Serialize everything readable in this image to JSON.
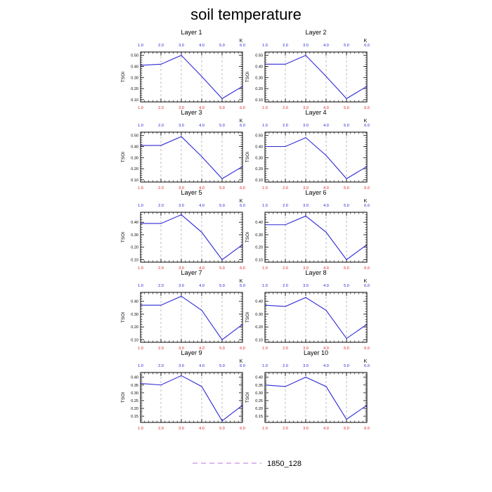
{
  "title": "soil temperature",
  "legend": {
    "label": "1850_128",
    "color": "#d8a0e8",
    "style": "dashed"
  },
  "colors": {
    "line": "#2e2ad6",
    "top_ticks": "#2222cc",
    "bottom_ticks": "#dd2222",
    "grid": "#a0a0a0"
  },
  "chart_data": [
    {
      "type": "line",
      "title": "Layer 1",
      "ylabel": "TSOI",
      "top_unit": "K",
      "x": [
        1,
        2,
        3,
        4,
        5,
        6
      ],
      "xlim": [
        1,
        6
      ],
      "xticks": [
        "1.0",
        "2.0",
        "3.0",
        "4.0",
        "5.0",
        "6.0"
      ],
      "ylim": [
        0.08,
        0.53
      ],
      "yticks": [
        0.1,
        0.2,
        0.3,
        0.4,
        0.5
      ],
      "yticklabels": [
        "0.10",
        "0.20",
        "0.30",
        "0.40",
        "0.50"
      ],
      "series": [
        {
          "name": "1850_128",
          "values": [
            0.41,
            0.42,
            0.5,
            0.31,
            0.11,
            0.22
          ]
        }
      ]
    },
    {
      "type": "line",
      "title": "Layer 2",
      "ylabel": "TSOI",
      "top_unit": "K",
      "x": [
        1,
        2,
        3,
        4,
        5,
        6
      ],
      "xlim": [
        1,
        6
      ],
      "xticks": [
        "1.0",
        "2.0",
        "3.0",
        "4.0",
        "5.0",
        "6.0"
      ],
      "ylim": [
        0.08,
        0.53
      ],
      "yticks": [
        0.1,
        0.2,
        0.3,
        0.4,
        0.5
      ],
      "yticklabels": [
        "0.10",
        "0.20",
        "0.30",
        "0.40",
        "0.50"
      ],
      "series": [
        {
          "name": "1850_128",
          "values": [
            0.42,
            0.42,
            0.5,
            0.31,
            0.11,
            0.22
          ]
        }
      ]
    },
    {
      "type": "line",
      "title": "Layer 3",
      "ylabel": "TSOI",
      "top_unit": "K",
      "x": [
        1,
        2,
        3,
        4,
        5,
        6
      ],
      "xlim": [
        1,
        6
      ],
      "xticks": [
        "1.0",
        "2.0",
        "3.0",
        "4.0",
        "5.0",
        "6.0"
      ],
      "ylim": [
        0.08,
        0.53
      ],
      "yticks": [
        0.1,
        0.2,
        0.3,
        0.4,
        0.5
      ],
      "yticklabels": [
        "0.10",
        "0.20",
        "0.30",
        "0.40",
        "0.50"
      ],
      "series": [
        {
          "name": "1850_128",
          "values": [
            0.41,
            0.41,
            0.49,
            0.31,
            0.11,
            0.22
          ]
        }
      ]
    },
    {
      "type": "line",
      "title": "Layer 4",
      "ylabel": "TSOI",
      "top_unit": "K",
      "x": [
        1,
        2,
        3,
        4,
        5,
        6
      ],
      "xlim": [
        1,
        6
      ],
      "xticks": [
        "1.0",
        "2.0",
        "3.0",
        "4.0",
        "5.0",
        "6.0"
      ],
      "ylim": [
        0.08,
        0.53
      ],
      "yticks": [
        0.1,
        0.2,
        0.3,
        0.4,
        0.5
      ],
      "yticklabels": [
        "0.10",
        "0.20",
        "0.30",
        "0.40",
        "0.50"
      ],
      "series": [
        {
          "name": "1850_128",
          "values": [
            0.4,
            0.4,
            0.48,
            0.32,
            0.11,
            0.22
          ]
        }
      ]
    },
    {
      "type": "line",
      "title": "Layer 5",
      "ylabel": "TSOI",
      "top_unit": "K",
      "x": [
        1,
        2,
        3,
        4,
        5,
        6
      ],
      "xlim": [
        1,
        6
      ],
      "xticks": [
        "1.0",
        "2.0",
        "3.0",
        "4.0",
        "5.0",
        "6.0"
      ],
      "ylim": [
        0.08,
        0.48
      ],
      "yticks": [
        0.1,
        0.2,
        0.3,
        0.4
      ],
      "yticklabels": [
        "0.10",
        "0.20",
        "0.30",
        "0.40"
      ],
      "series": [
        {
          "name": "1850_128",
          "values": [
            0.39,
            0.39,
            0.46,
            0.32,
            0.1,
            0.22
          ]
        }
      ]
    },
    {
      "type": "line",
      "title": "Layer 6",
      "ylabel": "TSOI",
      "top_unit": "K",
      "x": [
        1,
        2,
        3,
        4,
        5,
        6
      ],
      "xlim": [
        1,
        6
      ],
      "xticks": [
        "1.0",
        "2.0",
        "3.0",
        "4.0",
        "5.0",
        "6.0"
      ],
      "ylim": [
        0.08,
        0.48
      ],
      "yticks": [
        0.1,
        0.2,
        0.3,
        0.4
      ],
      "yticklabels": [
        "0.10",
        "0.20",
        "0.30",
        "0.40"
      ],
      "series": [
        {
          "name": "1850_128",
          "values": [
            0.38,
            0.38,
            0.45,
            0.32,
            0.1,
            0.22
          ]
        }
      ]
    },
    {
      "type": "line",
      "title": "Layer 7",
      "ylabel": "TSOI",
      "top_unit": "K",
      "x": [
        1,
        2,
        3,
        4,
        5,
        6
      ],
      "xlim": [
        1,
        6
      ],
      "xticks": [
        "1.0",
        "2.0",
        "3.0",
        "4.0",
        "5.0",
        "6.0"
      ],
      "ylim": [
        0.08,
        0.47
      ],
      "yticks": [
        0.1,
        0.2,
        0.3,
        0.4
      ],
      "yticklabels": [
        "0.10",
        "0.20",
        "0.30",
        "0.40"
      ],
      "series": [
        {
          "name": "1850_128",
          "values": [
            0.37,
            0.37,
            0.44,
            0.33,
            0.1,
            0.22
          ]
        }
      ]
    },
    {
      "type": "line",
      "title": "Layer 8",
      "ylabel": "TSOI",
      "top_unit": "K",
      "x": [
        1,
        2,
        3,
        4,
        5,
        6
      ],
      "xlim": [
        1,
        6
      ],
      "xticks": [
        "1.0",
        "2.0",
        "3.0",
        "4.0",
        "5.0",
        "6.0"
      ],
      "ylim": [
        0.08,
        0.47
      ],
      "yticks": [
        0.1,
        0.2,
        0.3,
        0.4
      ],
      "yticklabels": [
        "0.10",
        "0.20",
        "0.30",
        "0.40"
      ],
      "series": [
        {
          "name": "1850_128",
          "values": [
            0.37,
            0.36,
            0.43,
            0.33,
            0.11,
            0.22
          ]
        }
      ]
    },
    {
      "type": "line",
      "title": "Layer 9",
      "ylabel": "TSOI",
      "top_unit": "K",
      "x": [
        1,
        2,
        3,
        4,
        5,
        6
      ],
      "xlim": [
        1,
        6
      ],
      "xticks": [
        "1.0",
        "2.0",
        "3.0",
        "4.0",
        "5.0",
        "6.0"
      ],
      "ylim": [
        0.11,
        0.43
      ],
      "yticks": [
        0.15,
        0.2,
        0.25,
        0.3,
        0.35,
        0.4
      ],
      "yticklabels": [
        "0.15",
        "0.20",
        "0.25",
        "0.30",
        "0.35",
        "0.40"
      ],
      "series": [
        {
          "name": "1850_128",
          "values": [
            0.36,
            0.35,
            0.41,
            0.34,
            0.12,
            0.22
          ]
        }
      ]
    },
    {
      "type": "line",
      "title": "Layer 10",
      "ylabel": "TSOI",
      "top_unit": "K",
      "x": [
        1,
        2,
        3,
        4,
        5,
        6
      ],
      "xlim": [
        1,
        6
      ],
      "xticks": [
        "1.0",
        "2.0",
        "3.0",
        "4.0",
        "5.0",
        "6.0"
      ],
      "ylim": [
        0.11,
        0.43
      ],
      "yticks": [
        0.15,
        0.2,
        0.25,
        0.3,
        0.35,
        0.4
      ],
      "yticklabels": [
        "0.15",
        "0.20",
        "0.25",
        "0.30",
        "0.35",
        "0.40"
      ],
      "series": [
        {
          "name": "1850_128",
          "values": [
            0.35,
            0.34,
            0.4,
            0.34,
            0.13,
            0.22
          ]
        }
      ]
    }
  ]
}
